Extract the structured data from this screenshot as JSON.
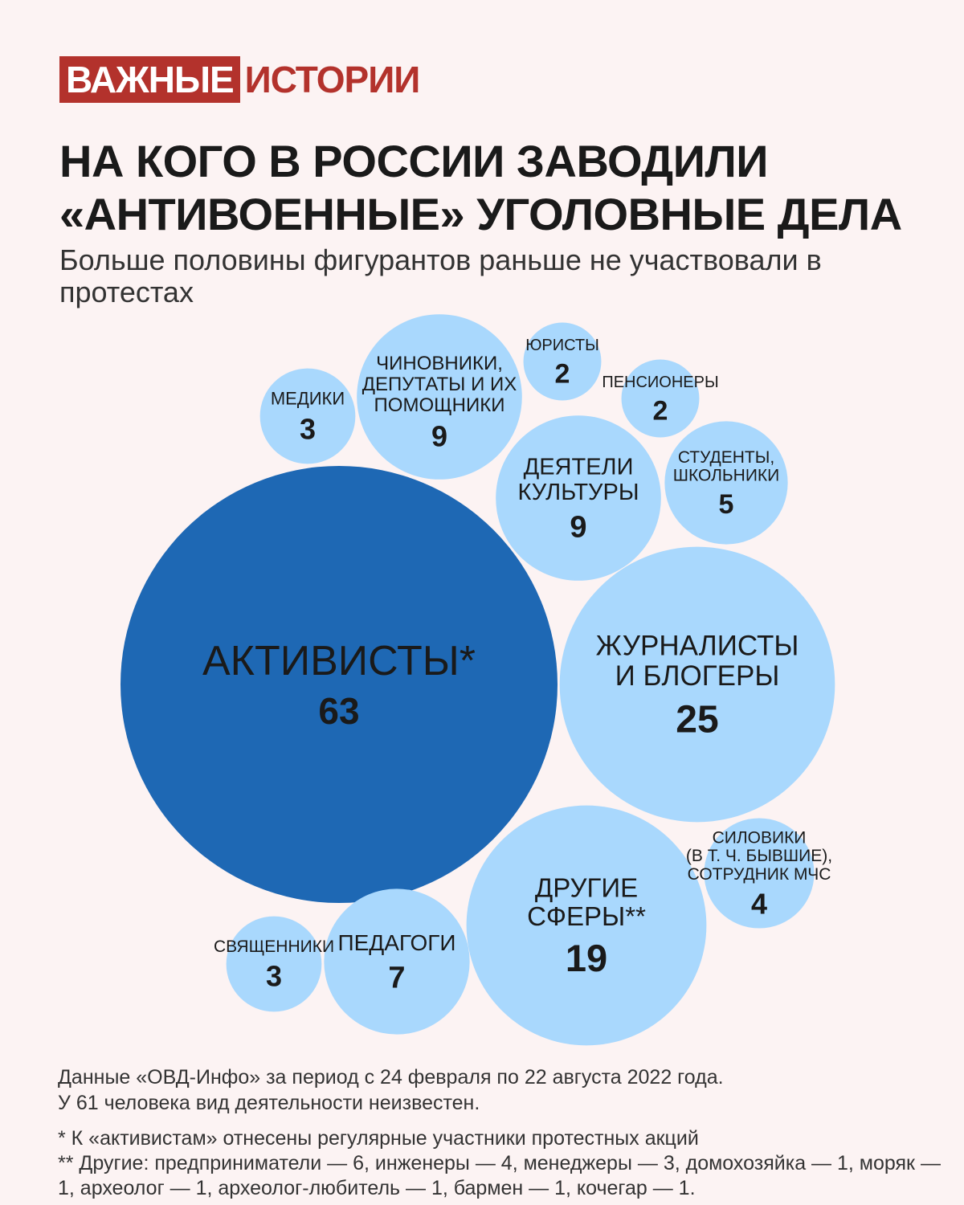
{
  "brand": {
    "part1": "ВАЖНЫЕ",
    "part2": "ИСТОРИИ",
    "color": "#b3322c"
  },
  "title": "НА КОГО В РОССИИ ЗАВОДИЛИ «АНТИВОЕННЫЕ» УГОЛОВНЫЕ ДЕЛА",
  "subtitle": "Больше половины фигурантов раньше не участвовали в протестах",
  "footer": {
    "source": "Данные «ОВД-Инфо» за период с 24 февраля по 22 августа 2022 года.",
    "unknown": "У 61 человека вид деятельности неизвестен.",
    "note1": "* К «активистам» отнесены регулярные участники протестных акций",
    "note2": "** Другие: предприниматели — 6, инженеры — 4, менеджеры — 3, домохозяйка — 1, моряк — 1, археолог — 1, археолог-любитель — 1, бармен — 1, кочегар — 1."
  },
  "colors": {
    "highlight": "#1e68b4",
    "bubble": "#a9d8fd",
    "background": "#fcf3f3"
  },
  "chart_data": {
    "type": "bubble",
    "title": "НА КОГО В РОССИИ ЗАВОДИЛИ «АНТИВОЕННЫЕ» УГОЛОВНЫЕ ДЕЛА",
    "unit": "",
    "categories": [
      {
        "label": [
          "АКТИВИСТЫ*"
        ],
        "value": 63,
        "highlight": true
      },
      {
        "label": [
          "ЖУРНАЛИСТЫ",
          "И БЛОГЕРЫ"
        ],
        "value": 25
      },
      {
        "label": [
          "ДРУГИЕ",
          "СФЕРЫ**"
        ],
        "value": 19
      },
      {
        "label": [
          "ЧИНОВНИКИ,",
          "ДЕПУТАТЫ И ИХ",
          "ПОМОЩНИКИ"
        ],
        "value": 9
      },
      {
        "label": [
          "ДЕЯТЕЛИ",
          "КУЛЬТУРЫ"
        ],
        "value": 9
      },
      {
        "label": [
          "ПЕДАГОГИ"
        ],
        "value": 7
      },
      {
        "label": [
          "СТУДЕНТЫ,",
          "ШКОЛЬНИКИ"
        ],
        "value": 5
      },
      {
        "label": [
          "СИЛОВИКИ",
          "(В Т. Ч. БЫВШИЕ),",
          "СОТРУДНИК МЧС"
        ],
        "value": 4
      },
      {
        "label": [
          "МЕДИКИ"
        ],
        "value": 3
      },
      {
        "label": [
          "СВЯЩЕННИКИ"
        ],
        "value": 3
      },
      {
        "label": [
          "ЮРИСТЫ"
        ],
        "value": 2
      },
      {
        "label": [
          "ПЕНСИОНЕРЫ"
        ],
        "value": 2
      }
    ]
  }
}
